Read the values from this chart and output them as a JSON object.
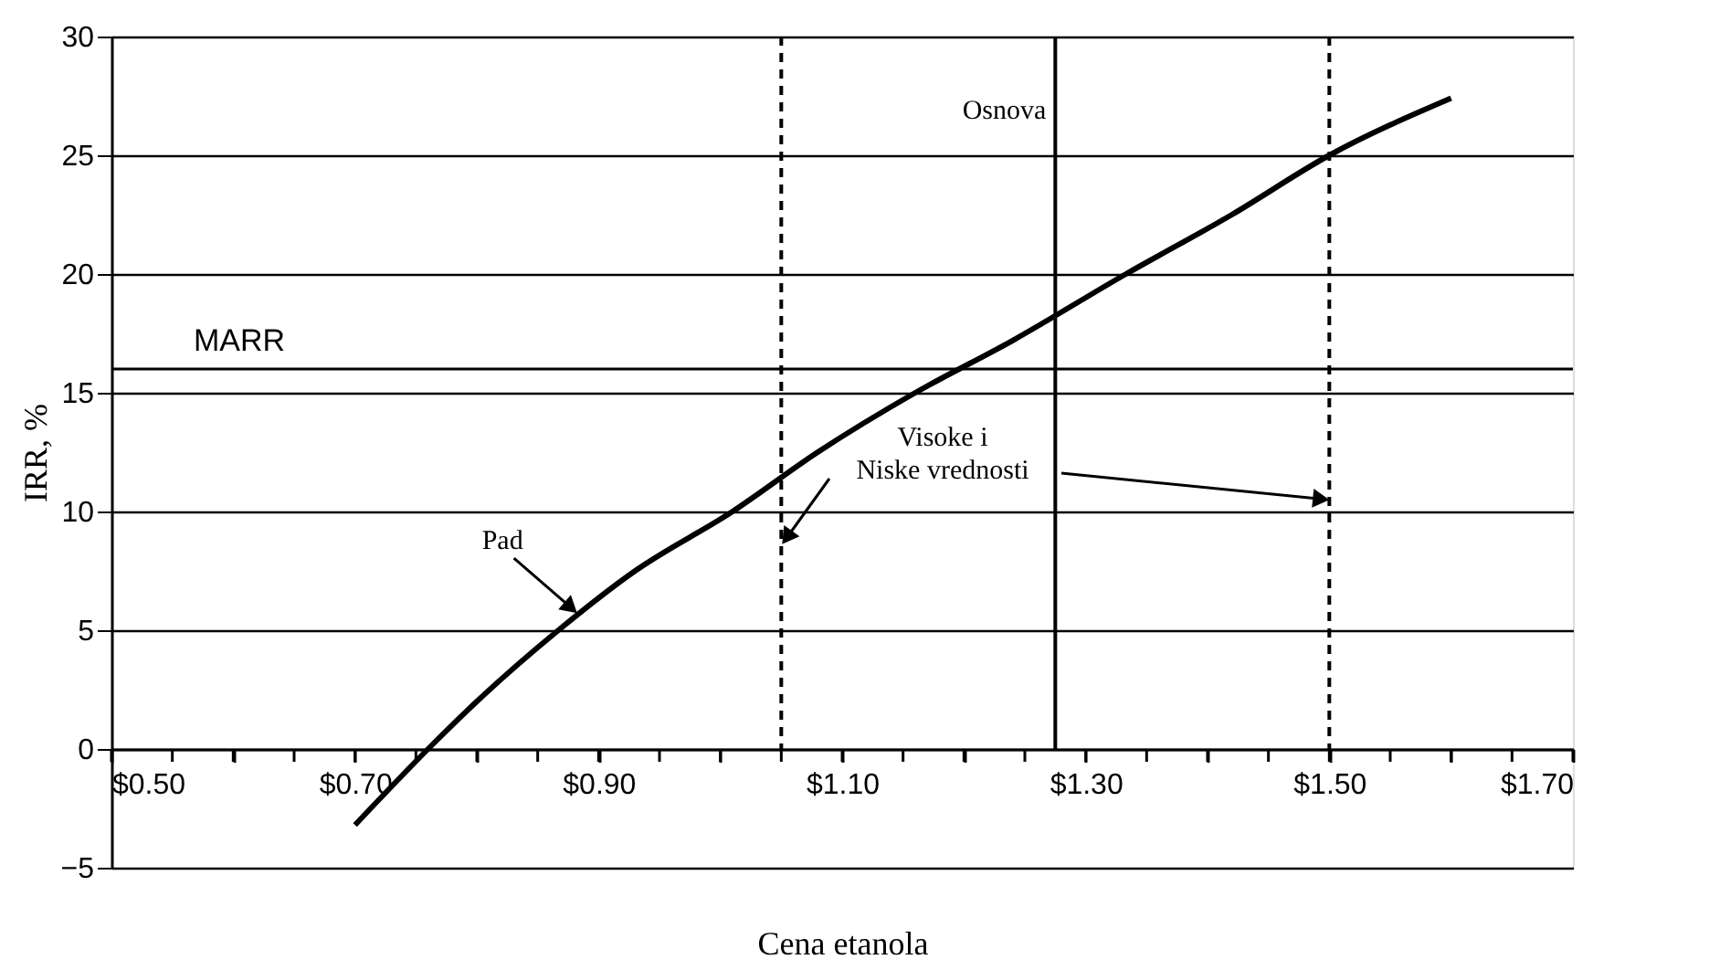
{
  "chart_data": {
    "type": "line",
    "xlabel": "Cena etanola",
    "ylabel": "IRR, %",
    "x": [
      0.7,
      0.76,
      0.8,
      0.867,
      0.93,
      1.01,
      1.08,
      1.16,
      1.24,
      1.333,
      1.42,
      1.5,
      1.6
    ],
    "series": [
      {
        "color": "#000000",
        "values": [
          -3.2,
          0,
          2,
          5,
          7.5,
          10,
          12.5,
          15,
          17.2,
          20,
          22.5,
          25,
          27.4
        ]
      }
    ],
    "xlim": [
      0.5,
      1.7
    ],
    "xticks": [
      {
        "value": 0.5,
        "label": "$0.50"
      },
      {
        "value": 0.55,
        "label": null
      },
      {
        "value": 0.6,
        "label": null
      },
      {
        "value": 0.65,
        "label": null
      },
      {
        "value": 0.7,
        "label": "$0.70"
      },
      {
        "value": 0.75,
        "label": null
      },
      {
        "value": 0.8,
        "label": null
      },
      {
        "value": 0.85,
        "label": null
      },
      {
        "value": 0.9,
        "label": "$0.90"
      },
      {
        "value": 0.95,
        "label": null
      },
      {
        "value": 1.0,
        "label": null
      },
      {
        "value": 1.05,
        "label": null
      },
      {
        "value": 1.1,
        "label": "$1.10"
      },
      {
        "value": 1.15,
        "label": null
      },
      {
        "value": 1.2,
        "label": null
      },
      {
        "value": 1.25,
        "label": null
      },
      {
        "value": 1.3,
        "label": "$1.30"
      },
      {
        "value": 1.35,
        "label": null
      },
      {
        "value": 1.4,
        "label": null
      },
      {
        "value": 1.45,
        "label": null
      },
      {
        "value": 1.5,
        "label": "$1.50"
      },
      {
        "value": 1.55,
        "label": null
      },
      {
        "value": 1.6,
        "label": null
      },
      {
        "value": 1.65,
        "label": null
      },
      {
        "value": 1.7,
        "label": "$1.70"
      }
    ],
    "ylim": [
      -5,
      30
    ],
    "yticks": [
      -5,
      0,
      5,
      10,
      15,
      20,
      25,
      30
    ],
    "grid": "y",
    "marker": "none",
    "line_style": "solid",
    "ref_lines": [
      {
        "axis": "y",
        "value": 16,
        "label": "MARR",
        "color": "#000000",
        "line_style": "solid"
      },
      {
        "axis": "x",
        "value": 1.275,
        "label": "Osnova",
        "color": "#000000",
        "line_style": "solid"
      },
      {
        "axis": "x",
        "value": 1.05,
        "color": "#000000",
        "line_style": "dashed"
      },
      {
        "axis": "x",
        "value": 1.5,
        "color": "#000000",
        "line_style": "dashed"
      }
    ],
    "annotations": [
      {
        "text": "Pad",
        "x": 0.88,
        "y": 5.8
      },
      {
        "text": "Visoke i\nNiske vrednosti",
        "x": 1.05,
        "y": 9
      }
    ]
  }
}
